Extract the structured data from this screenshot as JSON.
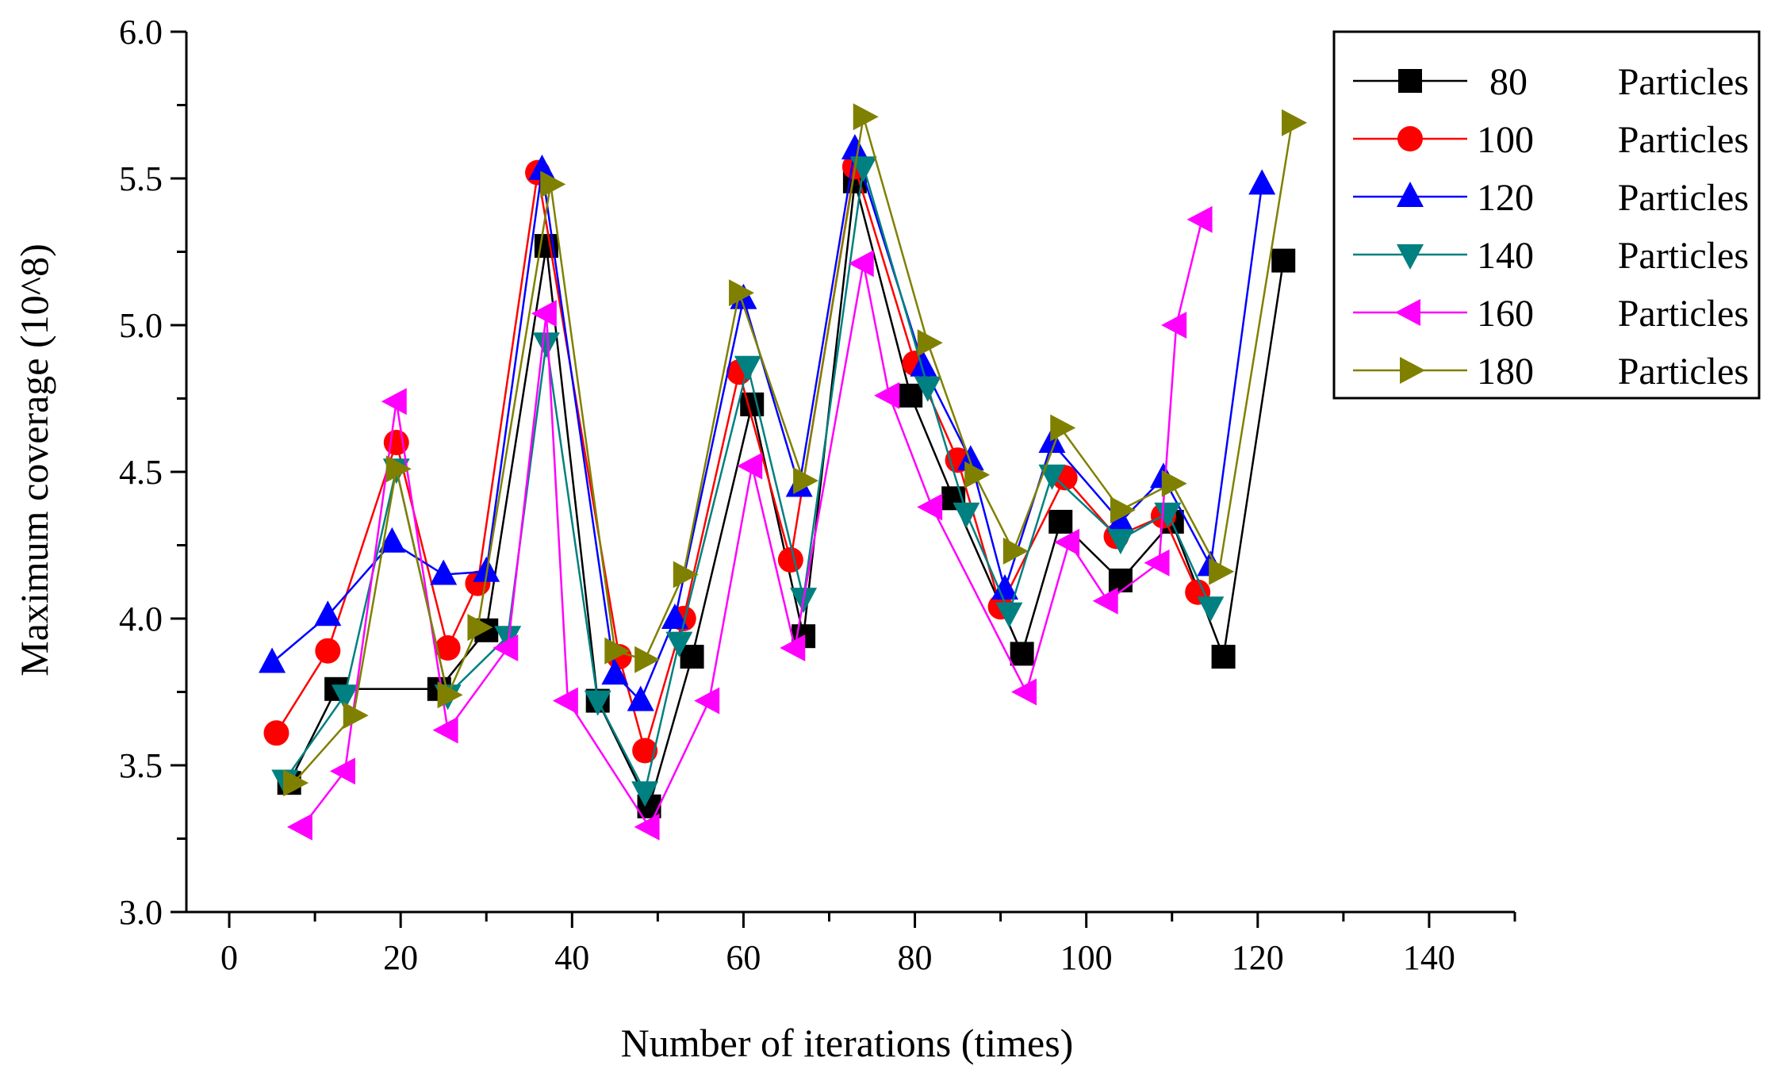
{
  "chart_data": {
    "type": "line",
    "title": "",
    "xlabel": "Number of iterations (times)",
    "ylabel": "Maximum coverage (10^8)",
    "xlim": [
      -5,
      150
    ],
    "ylim": [
      3.0,
      6.0
    ],
    "xticks": [
      0,
      20,
      40,
      60,
      80,
      100,
      120,
      140
    ],
    "yticks": [
      3.0,
      3.5,
      4.0,
      4.5,
      5.0,
      5.5,
      6.0
    ],
    "xtick_labels": [
      "0",
      "20",
      "40",
      "60",
      "80",
      "100",
      "120",
      "140"
    ],
    "ytick_labels": [
      "3.0",
      "3.5",
      "4.0",
      "4.5",
      "5.0",
      "5.5",
      "6.0"
    ],
    "legend_position": "top-right",
    "series": [
      {
        "name": "80 Particles",
        "legend_count": "80",
        "legend_word": "Particles",
        "color": "#000000",
        "marker": "square",
        "x": [
          7,
          12.5,
          24.5,
          30,
          37,
          43,
          49,
          54,
          61,
          67,
          73,
          79.5,
          84.5,
          92.5,
          97,
          104,
          110,
          116,
          123
        ],
        "y": [
          3.44,
          3.76,
          3.76,
          3.96,
          5.27,
          3.72,
          3.36,
          3.87,
          4.73,
          3.94,
          5.49,
          4.76,
          4.41,
          3.88,
          4.33,
          4.13,
          4.33,
          3.87,
          5.22
        ]
      },
      {
        "name": "100 Particles",
        "legend_count": "100",
        "legend_word": "Particles",
        "color": "#ff0000",
        "marker": "circle",
        "x": [
          5.5,
          11.5,
          19.5,
          25.5,
          29,
          36,
          45.5,
          48.5,
          53,
          59.5,
          65.5,
          73,
          80,
          85,
          90,
          97.5,
          103.5,
          109,
          113
        ],
        "y": [
          3.61,
          3.89,
          4.6,
          3.9,
          4.12,
          5.52,
          3.87,
          3.55,
          4.0,
          4.84,
          4.2,
          5.54,
          4.87,
          4.54,
          4.04,
          4.48,
          4.28,
          4.35,
          4.09
        ]
      },
      {
        "name": "120 Particles",
        "legend_count": "120",
        "legend_word": "Particles",
        "color": "#0000ff",
        "marker": "triangle-up",
        "x": [
          5,
          11.5,
          19,
          25,
          30,
          36.5,
          45,
          48,
          52,
          60,
          66.5,
          73,
          81,
          86.5,
          90.5,
          96,
          104,
          109,
          114.5,
          120.5
        ],
        "y": [
          3.85,
          4.01,
          4.26,
          4.15,
          4.16,
          5.53,
          3.81,
          3.72,
          4.0,
          5.09,
          4.45,
          5.6,
          4.86,
          4.54,
          4.1,
          4.6,
          4.33,
          4.48,
          4.18,
          5.48
        ]
      },
      {
        "name": "140 Particles",
        "legend_count": "140",
        "legend_word": "Particles",
        "color": "#008080",
        "marker": "triangle-down",
        "x": [
          6.5,
          13.5,
          19.5,
          25.5,
          32.5,
          37,
          43,
          48.5,
          52.5,
          60.5,
          67,
          74,
          81.5,
          86,
          91,
          96,
          104,
          109.5,
          114.5
        ],
        "y": [
          3.45,
          3.74,
          4.51,
          3.74,
          3.94,
          4.94,
          3.72,
          3.41,
          3.92,
          4.86,
          4.07,
          5.54,
          4.79,
          4.36,
          4.02,
          4.49,
          4.27,
          4.36,
          4.04
        ]
      },
      {
        "name": "160 Particles",
        "legend_count": "160",
        "legend_word": "Particles",
        "color": "#ff00ff",
        "marker": "triangle-left",
        "x": [
          8.5,
          13.5,
          19.5,
          25.5,
          32.5,
          37,
          39.5,
          49,
          56,
          61,
          66,
          74,
          77,
          82,
          93,
          98,
          102.5,
          108.5,
          110.5,
          113.5
        ],
        "y": [
          3.29,
          3.48,
          4.74,
          3.62,
          3.9,
          5.04,
          3.72,
          3.29,
          3.72,
          4.52,
          3.9,
          5.21,
          4.76,
          4.38,
          3.75,
          4.26,
          4.06,
          4.19,
          5.0,
          5.36
        ]
      },
      {
        "name": "180 Particles",
        "legend_count": "180",
        "legend_word": "Particles",
        "color": "#808000",
        "marker": "triangle-right",
        "x": [
          7.5,
          14.5,
          19.5,
          25.5,
          29,
          37.5,
          45,
          48.5,
          53,
          59.5,
          67,
          74,
          81.5,
          87,
          91.5,
          97,
          104,
          110,
          115.5,
          124
        ],
        "y": [
          3.44,
          3.67,
          4.51,
          3.74,
          3.97,
          5.48,
          3.89,
          3.86,
          4.15,
          5.11,
          4.47,
          5.71,
          4.94,
          4.49,
          4.23,
          4.65,
          4.37,
          4.46,
          4.16,
          5.69
        ]
      }
    ]
  }
}
